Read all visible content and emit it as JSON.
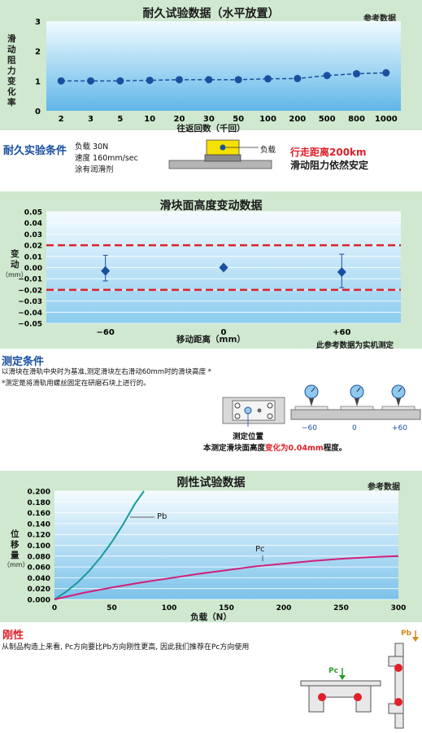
{
  "colors": {
    "panel": "#cfe8cf",
    "accent_blue": "#1a4fa0",
    "red": "#e0202a",
    "teal": "#1a9a9a",
    "magenta": "#d0207a"
  },
  "section1": {
    "title": "耐久试验数据（水平放置）",
    "tag": "参考数据",
    "ylabel": "滑动阻力变化率",
    "xlabel": "往返回数（千回）",
    "heading": "耐久实验条件",
    "cond1": "负载 30N",
    "cond2": "速度 160mm/sec",
    "cond3": "涂有润滑剂",
    "diagram_label": "负载",
    "result1": "行走距离200km",
    "result2": "滑动阻力依然安定"
  },
  "section2": {
    "title": "滑块面高度变动数据",
    "ylabel": "变动",
    "yunit": "（mm）",
    "xlabel": "移动距离（mm）",
    "note": "此参考数据为实机测定",
    "heading": "测定条件",
    "desc1": "以滑块在滑轨中央时为基准,测定滑块左右滑动60mm时的滑块高度 *",
    "desc2": "*测定是将滑轨用螺丝固定在研磨石块上进行的。",
    "pos_label": "测定位置",
    "res_pre": "本测定滑块面高度",
    "res_red": "变化为0.04mm",
    "res_post": "程度。",
    "g_labels": [
      "−60",
      "0",
      "+60"
    ]
  },
  "section3": {
    "title": "刚性试验数据",
    "tag": "参考数据",
    "ylabel": "位移量",
    "yunit": "（mm）",
    "xlabel": "负载（N）",
    "heading": "刚性",
    "desc": "从制品构造上来看, Pc方向要比Pb方向刚性更高, 因此我们推荐在Pc方向使用",
    "pb": "Pb",
    "pc": "Pc"
  },
  "chart_data": [
    {
      "type": "line",
      "title": "耐久试验数据（水平放置）",
      "xlabel": "往返回数（千回）",
      "ylabel": "滑动阻力变化率",
      "categories": [
        "2",
        "3",
        "5",
        "10",
        "20",
        "30",
        "50",
        "100",
        "200",
        "500",
        "800",
        "1000"
      ],
      "values": [
        1.0,
        1.0,
        1.0,
        1.02,
        1.04,
        1.04,
        1.04,
        1.07,
        1.08,
        1.18,
        1.24,
        1.27
      ],
      "ylim": [
        0,
        3
      ],
      "yticks": [
        "0",
        "1",
        "2",
        "3"
      ],
      "grid": false
    },
    {
      "type": "scatter",
      "title": "滑块面高度变动数据",
      "xlabel": "移动距离（mm）",
      "ylabel": "变动（mm）",
      "categories": [
        "−60",
        "0",
        "+60"
      ],
      "x": [
        -60,
        0,
        60
      ],
      "y": [
        -0.003,
        0.0,
        -0.004
      ],
      "err_high": [
        0.011,
        0.0,
        0.012
      ],
      "err_low": [
        -0.012,
        0.0,
        -0.018
      ],
      "ylim": [
        -0.05,
        0.05
      ],
      "yticks": [
        "0.05",
        "0.04",
        "0.03",
        "0.02",
        "0.01",
        "0.00",
        "−0.01",
        "−0.02",
        "−0.03",
        "−0.04",
        "−0.05"
      ],
      "limits": [
        0.02,
        -0.02
      ],
      "grid": true
    },
    {
      "type": "line",
      "title": "刚性试验数据",
      "xlabel": "负载（N）",
      "ylabel": "位移量（mm）",
      "xlim": [
        0,
        300
      ],
      "ylim": [
        0,
        0.2
      ],
      "xticks": [
        "0",
        "50",
        "100",
        "150",
        "200",
        "250",
        "300"
      ],
      "yticks": [
        "0.200",
        "0.180",
        "0.160",
        "0.140",
        "0.120",
        "0.100",
        "0.080",
        "0.060",
        "0.040",
        "0.020",
        "0.000"
      ],
      "series": [
        {
          "name": "Pb",
          "x": [
            0,
            10,
            20,
            30,
            40,
            50,
            60,
            70,
            78
          ],
          "y": [
            0,
            0.014,
            0.031,
            0.052,
            0.077,
            0.106,
            0.139,
            0.176,
            0.2
          ]
        },
        {
          "name": "Pc",
          "x": [
            0,
            25,
            50,
            75,
            100,
            125,
            150,
            175,
            200,
            225,
            250,
            275,
            300
          ],
          "y": [
            0,
            0.012,
            0.022,
            0.031,
            0.039,
            0.047,
            0.054,
            0.061,
            0.066,
            0.071,
            0.075,
            0.078,
            0.08
          ]
        }
      ],
      "grid": true
    }
  ]
}
